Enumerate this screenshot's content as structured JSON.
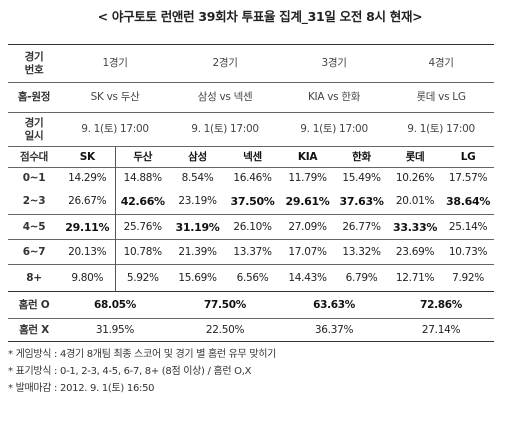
{
  "title": "< 야구토토 런앤런 39회차 투표율 집계_31일 오전 8시 현재>",
  "labels": {
    "game_no": [
      "경기",
      "번호"
    ],
    "home_away": "홈-원정",
    "game_date": [
      "경기",
      "일시"
    ],
    "score_range": "점수대",
    "homerun_o": "홈런 O",
    "homerun_x": "홈런 X"
  },
  "games": [
    {
      "no": "1경기",
      "match": "SK vs 두산",
      "datetime": "9. 1(토) 17:00",
      "teams": [
        "SK",
        "두산"
      ],
      "homerun_o": "68.05%",
      "homerun_x": "31.95%"
    },
    {
      "no": "2경기",
      "match": "삼성 vs 넥센",
      "datetime": "9. 1(토) 17:00",
      "teams": [
        "삼성",
        "넥센"
      ],
      "homerun_o": "77.50%",
      "homerun_x": "22.50%"
    },
    {
      "no": "3경기",
      "match": "KIA vs 한화",
      "datetime": "9. 1(토) 17:00",
      "teams": [
        "KIA",
        "한화"
      ],
      "homerun_o": "63.63%",
      "homerun_x": "36.37%"
    },
    {
      "no": "4경기",
      "match": "롯데 vs LG",
      "datetime": "9. 1(토) 17:00",
      "teams": [
        "롯데",
        "LG"
      ],
      "homerun_o": "72.86%",
      "homerun_x": "27.14%"
    }
  ],
  "rows": [
    {
      "range": "0~1",
      "values": [
        "14.29%",
        "14.88%",
        "8.54%",
        "16.46%",
        "11.79%",
        "15.49%",
        "10.26%",
        "17.57%"
      ],
      "bold": []
    },
    {
      "range": "2~3",
      "values": [
        "26.67%",
        "42.66%",
        "23.19%",
        "37.50%",
        "29.61%",
        "37.63%",
        "20.01%",
        "38.64%"
      ],
      "bold": [
        1,
        3,
        4,
        5,
        7
      ]
    },
    {
      "range": "4~5",
      "values": [
        "29.11%",
        "25.76%",
        "31.19%",
        "26.10%",
        "27.09%",
        "26.77%",
        "33.33%",
        "25.14%"
      ],
      "bold": [
        0,
        2,
        6
      ]
    },
    {
      "range": "6~7",
      "values": [
        "20.13%",
        "10.78%",
        "21.39%",
        "13.37%",
        "17.07%",
        "13.32%",
        "23.69%",
        "10.73%"
      ],
      "bold": []
    },
    {
      "range": "8+",
      "values": [
        "9.80%",
        "5.92%",
        "15.69%",
        "6.56%",
        "14.43%",
        "6.79%",
        "12.71%",
        "7.92%"
      ],
      "bold": []
    }
  ],
  "notes": [
    "* 게임방식 : 4경기 8개팀 최종 스코어 및 경기 별 홈런 유무 맞히기",
    "* 표기방식 : 0-1, 2-3, 4-5, 6-7, 8+ (8점 이상) / 홈런 O,X",
    "* 발매마감 : 2012. 9. 1(토) 16:50"
  ]
}
